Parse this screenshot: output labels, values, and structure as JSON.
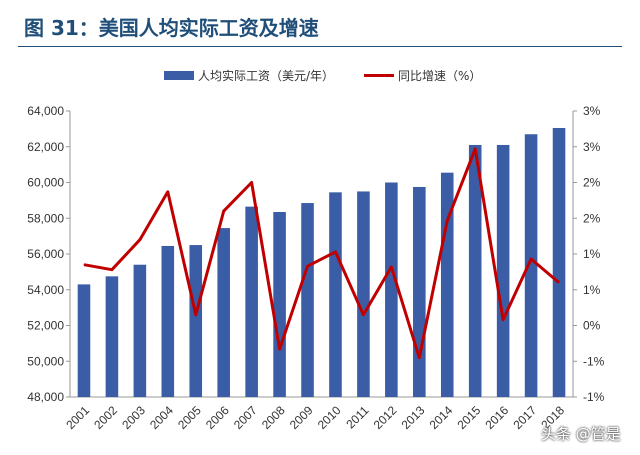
{
  "header": {
    "title": "图 31：美国人均实际工资及增速"
  },
  "watermark": "头条 @管是",
  "colors": {
    "bar": "#3a5da6",
    "line": "#c00000",
    "title": "#1f4e79",
    "axis": "#999999"
  },
  "chart_data": {
    "type": "bar",
    "categories": [
      "2001",
      "2002",
      "2003",
      "2004",
      "2005",
      "2006",
      "2007",
      "2008",
      "2009",
      "2010",
      "2011",
      "2012",
      "2013",
      "2014",
      "2015",
      "2016",
      "2017",
      "2018"
    ],
    "series": [
      {
        "name": "人均实际工资（美元/年）",
        "type": "bar",
        "axis": "left",
        "values": [
          54300,
          54750,
          55400,
          56450,
          56500,
          57450,
          58650,
          58350,
          58850,
          59450,
          59500,
          60000,
          59750,
          60550,
          62100,
          62100,
          62700,
          63050
        ]
      },
      {
        "name": "同比增速（%）",
        "type": "line",
        "axis": "right",
        "values": [
          0.85,
          0.78,
          1.2,
          1.87,
          0.15,
          1.6,
          2.0,
          -0.33,
          0.83,
          1.03,
          0.15,
          0.82,
          -0.45,
          1.47,
          2.47,
          0.08,
          0.93,
          0.6
        ]
      }
    ],
    "left_axis": {
      "ylim": [
        48000,
        64000
      ],
      "ticks": [
        "48,000",
        "50,000",
        "52,000",
        "54,000",
        "56,000",
        "58,000",
        "60,000",
        "62,000",
        "64,000"
      ]
    },
    "right_axis": {
      "ylim": [
        -1,
        3
      ],
      "ticks": [
        "-1%",
        "-1%",
        "0%",
        "1%",
        "1%",
        "2%",
        "2%",
        "3%",
        "3%"
      ]
    },
    "legend": "top-center",
    "grid": false
  }
}
